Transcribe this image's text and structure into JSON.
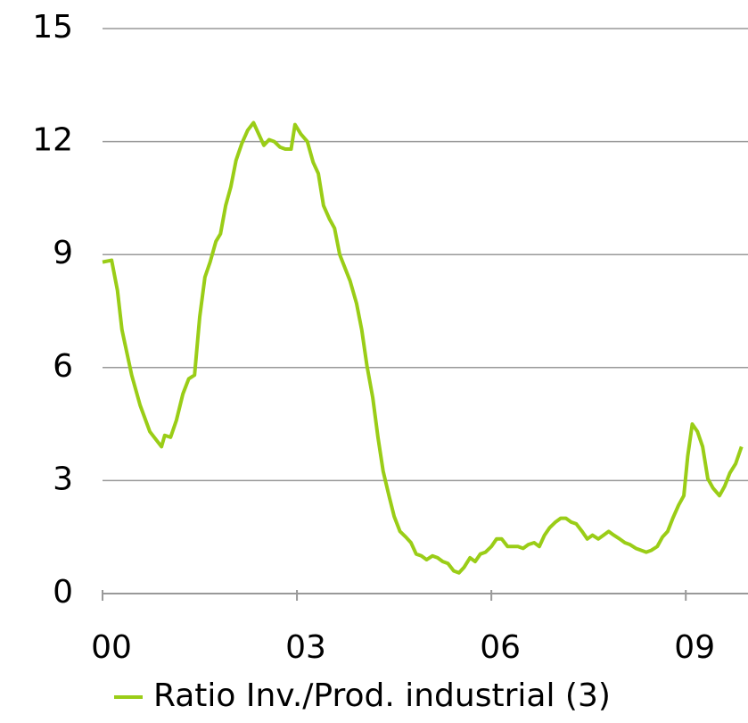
{
  "chart_data": {
    "type": "line",
    "x": [
      0,
      0.14,
      0.23,
      0.3,
      0.45,
      0.58,
      0.73,
      0.91,
      0.96,
      1.05,
      1.14,
      1.24,
      1.33,
      1.42,
      1.5,
      1.58,
      1.66,
      1.75,
      1.82,
      1.9,
      1.98,
      2.06,
      2.15,
      2.24,
      2.33,
      2.41,
      2.49,
      2.57,
      2.65,
      2.74,
      2.82,
      2.91,
      2.97,
      3.06,
      3.16,
      3.25,
      3.33,
      3.41,
      3.5,
      3.58,
      3.66,
      3.74,
      3.82,
      3.92,
      4.0,
      4.08,
      4.17,
      4.25,
      4.33,
      4.42,
      4.5,
      4.59,
      4.68,
      4.76,
      4.84,
      4.92,
      5.0,
      5.09,
      5.17,
      5.25,
      5.33,
      5.42,
      5.5,
      5.58,
      5.67,
      5.75,
      5.83,
      5.91,
      6.0,
      6.08,
      6.16,
      6.25,
      6.33,
      6.41,
      6.49,
      6.57,
      6.66,
      6.74,
      6.82,
      6.9,
      6.99,
      7.07,
      7.15,
      7.23,
      7.31,
      7.4,
      7.48,
      7.56,
      7.65,
      7.73,
      7.81,
      7.89,
      7.98,
      8.06,
      8.14,
      8.23,
      8.31,
      8.39,
      8.47,
      8.56,
      8.64,
      8.72,
      8.8,
      8.89,
      8.97,
      9.03,
      9.1,
      9.18,
      9.26,
      9.34,
      9.42,
      9.52,
      9.6,
      9.68,
      9.77,
      9.86
    ],
    "series": [
      {
        "name": "Ratio Inv./Prod. industrial (3)",
        "color": "#9acd17",
        "values": [
          8.8,
          8.85,
          8.05,
          7.0,
          5.8,
          5.0,
          4.3,
          3.9,
          4.2,
          4.15,
          4.6,
          5.3,
          5.7,
          5.8,
          7.35,
          8.4,
          8.8,
          9.35,
          9.55,
          10.3,
          10.8,
          11.5,
          11.95,
          12.3,
          12.5,
          12.2,
          11.9,
          12.05,
          12.0,
          11.85,
          11.8,
          11.8,
          12.45,
          12.2,
          12.0,
          11.45,
          11.15,
          10.3,
          9.95,
          9.7,
          9.0,
          8.65,
          8.3,
          7.7,
          7.0,
          6.05,
          5.2,
          4.15,
          3.25,
          2.6,
          2.05,
          1.65,
          1.5,
          1.35,
          1.05,
          1.0,
          0.9,
          1.0,
          0.95,
          0.85,
          0.8,
          0.6,
          0.55,
          0.7,
          0.95,
          0.85,
          1.05,
          1.1,
          1.25,
          1.45,
          1.45,
          1.25,
          1.25,
          1.25,
          1.2,
          1.3,
          1.35,
          1.25,
          1.55,
          1.75,
          1.9,
          2.0,
          2.0,
          1.9,
          1.85,
          1.65,
          1.45,
          1.55,
          1.45,
          1.55,
          1.65,
          1.55,
          1.45,
          1.35,
          1.3,
          1.2,
          1.15,
          1.1,
          1.15,
          1.25,
          1.5,
          1.65,
          2.0,
          2.35,
          2.6,
          3.65,
          4.5,
          4.3,
          3.9,
          3.05,
          2.8,
          2.6,
          2.85,
          3.2,
          3.45,
          3.9
        ]
      }
    ],
    "xlim": [
      0,
      9.96
    ],
    "xticks": [
      {
        "value": 0,
        "label": "00"
      },
      {
        "value": 3,
        "label": "03"
      },
      {
        "value": 6,
        "label": "06"
      },
      {
        "value": 9,
        "label": "09"
      }
    ],
    "ylim": [
      0,
      15
    ],
    "yticks": [
      0,
      3,
      6,
      9,
      12,
      15
    ],
    "grid": true,
    "legend": "bottom"
  }
}
